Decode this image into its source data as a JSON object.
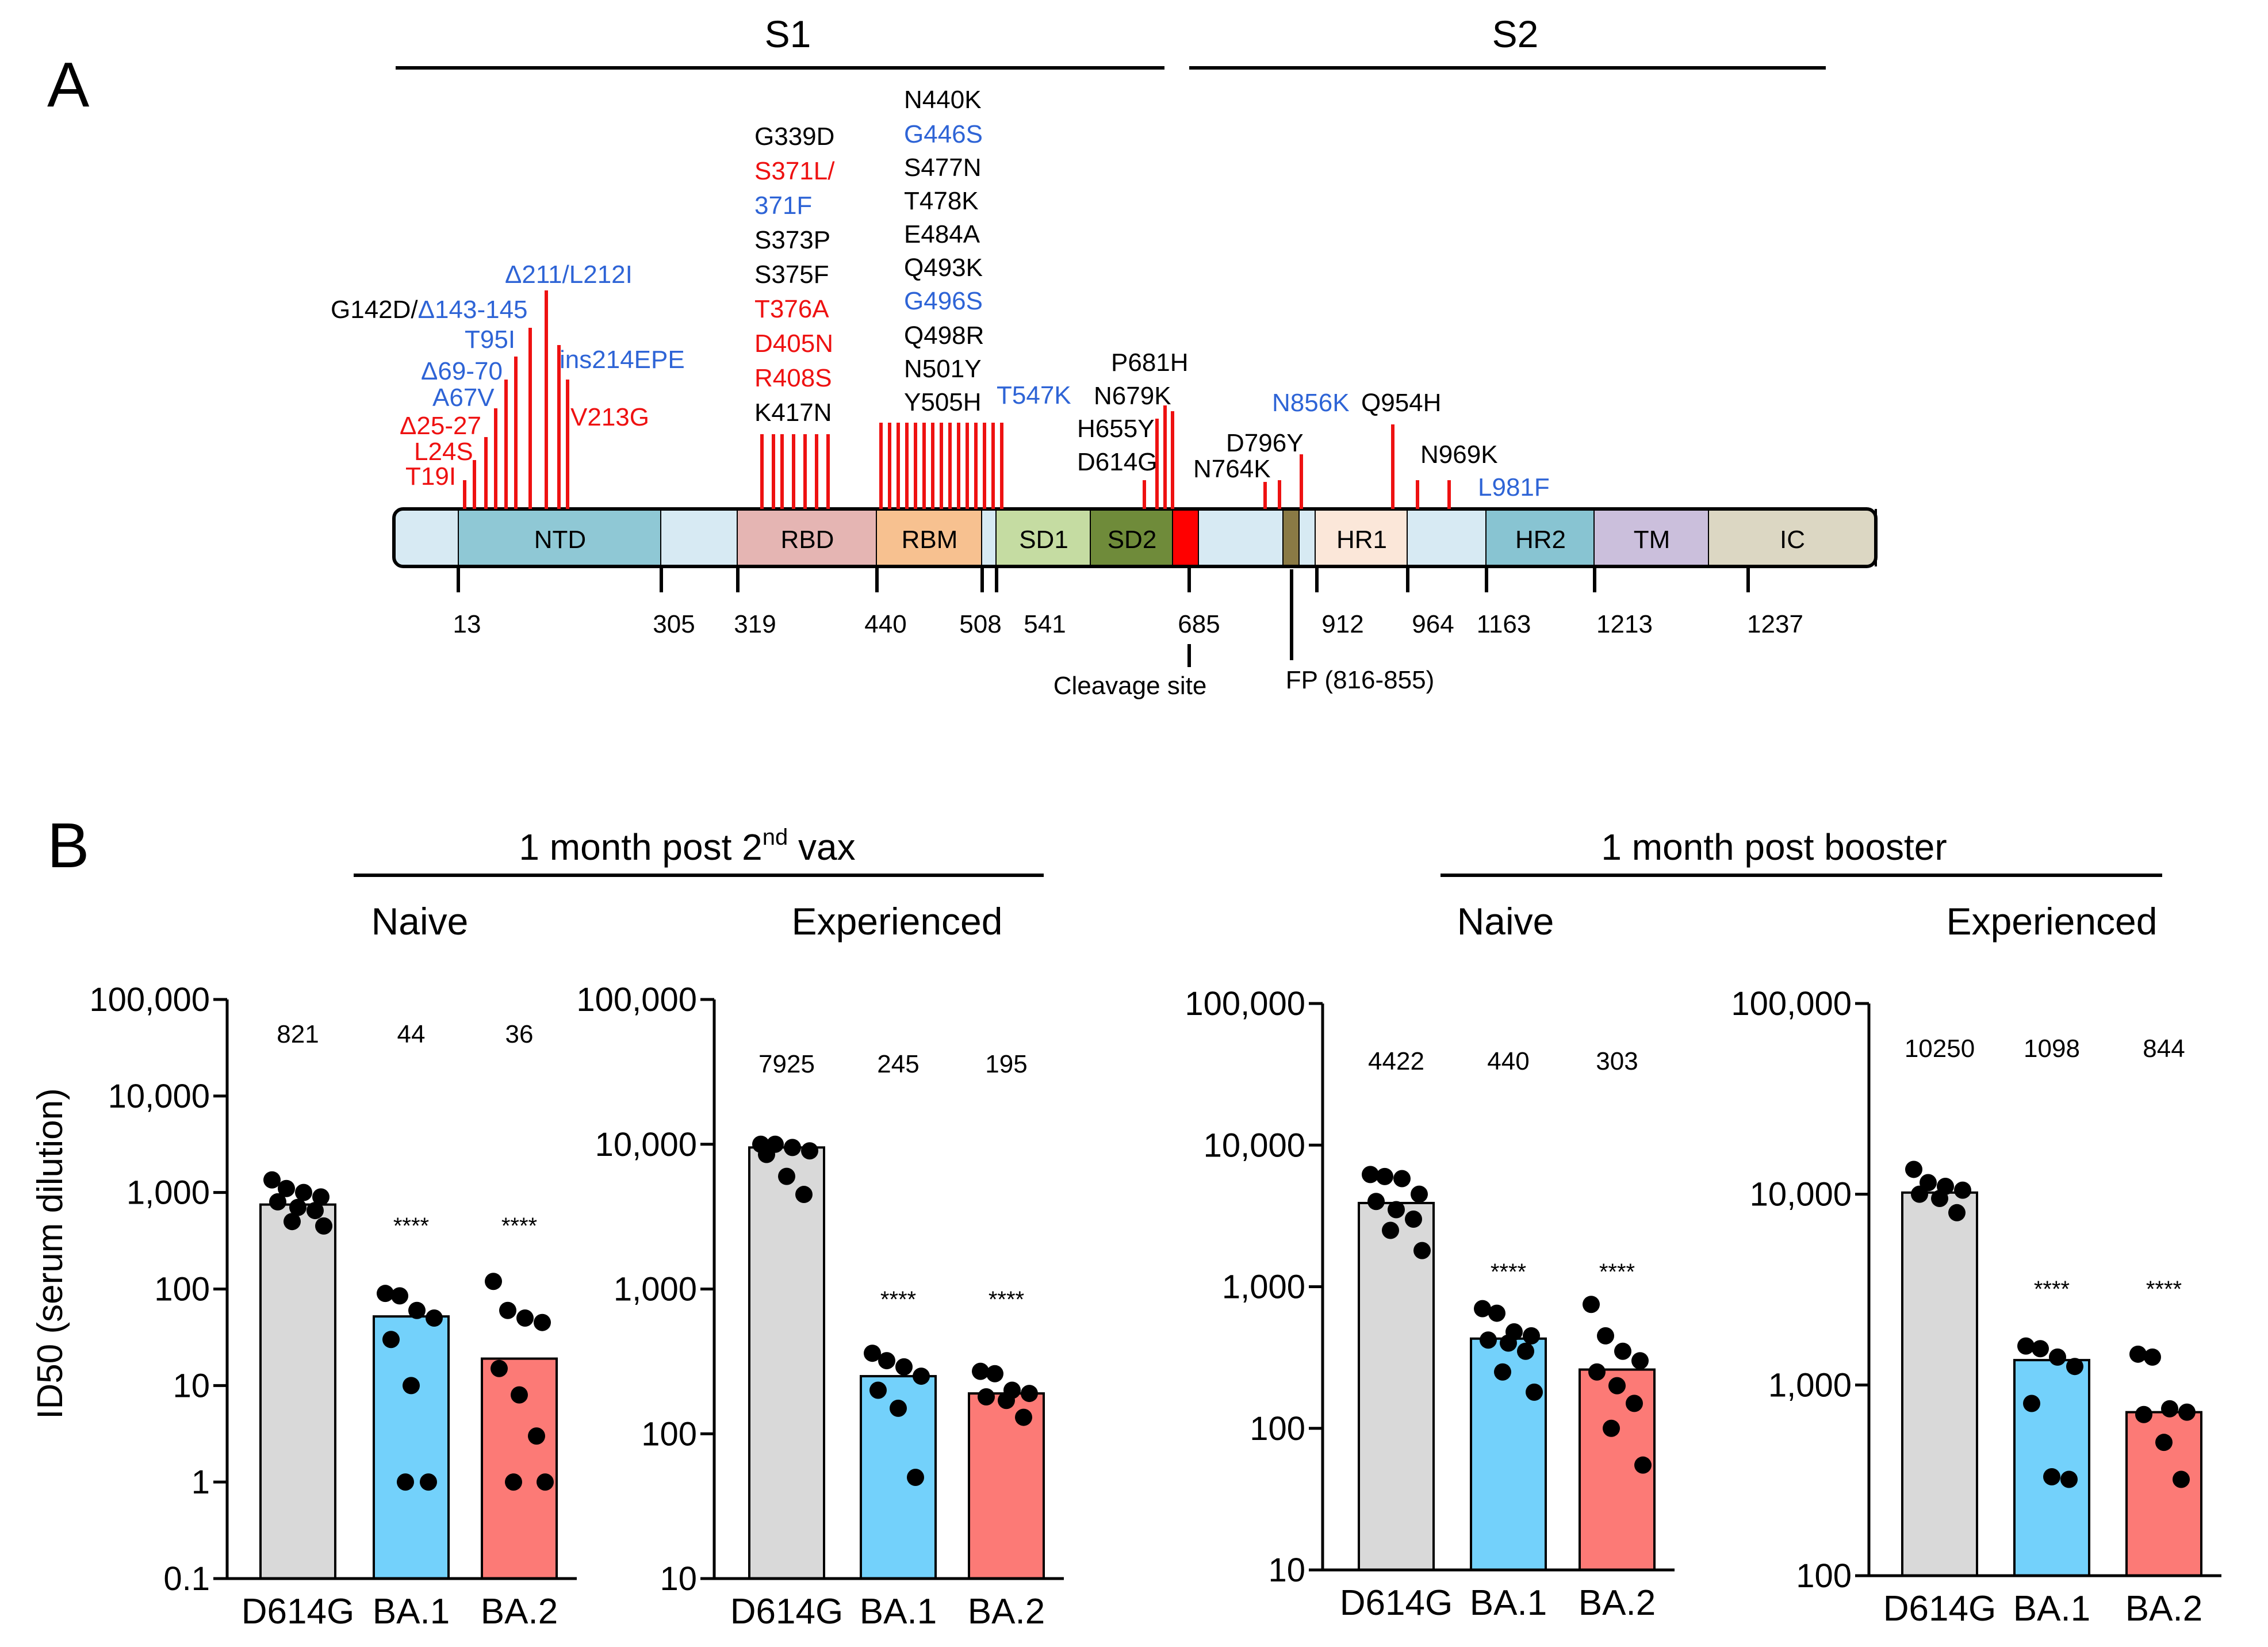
{
  "panel_a": {
    "label": "A",
    "region_s1": "S1",
    "region_s2": "S2",
    "domains": [
      {
        "name": "",
        "color": "#d7eaf3"
      },
      {
        "name": "NTD",
        "color": "#8fc8d5"
      },
      {
        "name": "",
        "color": "#d7eaf3"
      },
      {
        "name": "RBD",
        "color": "#e5b5b3"
      },
      {
        "name": "RBM",
        "color": "#f7c190"
      },
      {
        "name": "",
        "color": "#d7eaf3"
      },
      {
        "name": "SD1",
        "color": "#c5dca2"
      },
      {
        "name": "SD2",
        "color": "#6f8b3a"
      },
      {
        "name": "",
        "color": "#ff0000"
      },
      {
        "name": "",
        "color": "#d7eaf3"
      },
      {
        "name": "",
        "color": "#8a7a45"
      },
      {
        "name": "",
        "color": "#d7eaf3"
      },
      {
        "name": "HR1",
        "color": "#fbe7d9"
      },
      {
        "name": "",
        "color": "#d7eaf3"
      },
      {
        "name": "HR2",
        "color": "#88c4d2"
      },
      {
        "name": "TM",
        "color": "#cbbfdc"
      },
      {
        "name": "IC",
        "color": "#dcd7c3"
      }
    ],
    "positions": [
      "13",
      "305",
      "319",
      "440",
      "508",
      "541",
      "685",
      "912",
      "964",
      "1163",
      "1213",
      "1237"
    ],
    "cleavage_label": "Cleavage site",
    "fp_label": "FP (816-855)",
    "mutations_ntd": [
      {
        "text": "G142D/",
        "color": "#000000"
      },
      {
        "text": "Δ143-145",
        "color": "#2e64d6"
      },
      {
        "text": "Δ211/L212I",
        "color": "#2e64d6"
      },
      {
        "text": "T95I",
        "color": "#2e64d6"
      },
      {
        "text": "ins214EPE",
        "color": "#2e64d6"
      },
      {
        "text": "Δ69-70",
        "color": "#2e64d6"
      },
      {
        "text": "A67V",
        "color": "#2e64d6"
      },
      {
        "text": "V213G",
        "color": "#ee1111"
      },
      {
        "text": "Δ25-27",
        "color": "#ee1111"
      },
      {
        "text": "L24S",
        "color": "#ee1111"
      },
      {
        "text": "T19I",
        "color": "#ee1111"
      }
    ],
    "mutations_rbd": [
      {
        "text": "G339D",
        "color": "#000000"
      },
      {
        "text": "S371L/",
        "color": "#ee1111"
      },
      {
        "text": "371F",
        "color": "#2e64d6"
      },
      {
        "text": "S373P",
        "color": "#000000"
      },
      {
        "text": "S375F",
        "color": "#000000"
      },
      {
        "text": "T376A",
        "color": "#ee1111"
      },
      {
        "text": "D405N",
        "color": "#ee1111"
      },
      {
        "text": "R408S",
        "color": "#ee1111"
      },
      {
        "text": "K417N",
        "color": "#000000"
      }
    ],
    "mutations_rbm": [
      {
        "text": "N440K",
        "color": "#000000"
      },
      {
        "text": "G446S",
        "color": "#2e64d6"
      },
      {
        "text": "S477N",
        "color": "#000000"
      },
      {
        "text": "T478K",
        "color": "#000000"
      },
      {
        "text": "E484A",
        "color": "#000000"
      },
      {
        "text": "Q493K",
        "color": "#000000"
      },
      {
        "text": "G496S",
        "color": "#2e64d6"
      },
      {
        "text": "Q498R",
        "color": "#000000"
      },
      {
        "text": "N501Y",
        "color": "#000000"
      },
      {
        "text": "Y505H",
        "color": "#000000"
      }
    ],
    "mutations_other": [
      {
        "text": "T547K",
        "color": "#2e64d6"
      },
      {
        "text": "P681H",
        "color": "#000000"
      },
      {
        "text": "N679K",
        "color": "#000000"
      },
      {
        "text": "H655Y",
        "color": "#000000"
      },
      {
        "text": "D614G",
        "color": "#000000"
      },
      {
        "text": "N856K",
        "color": "#2e64d6"
      },
      {
        "text": "Q954H",
        "color": "#000000"
      },
      {
        "text": "D796Y",
        "color": "#000000"
      },
      {
        "text": "N764K",
        "color": "#000000"
      },
      {
        "text": "N969K",
        "color": "#000000"
      },
      {
        "text": "L981F",
        "color": "#2e64d6"
      }
    ]
  },
  "panel_b": {
    "label": "B",
    "group1_title": "1 month post 2",
    "group1_sup": "nd",
    "group1_tail": " vax",
    "group2_title": "1 month post booster",
    "sub_naive": "Naive",
    "sub_experienced": "Experienced",
    "y_axis_label": "ID50 (serum dilution)",
    "significance": "****"
  },
  "chart_data": [
    {
      "type": "bar",
      "title": "1 month post 2nd vax - Naive",
      "ylabel": "ID50 (serum dilution)",
      "yscale": "log",
      "ylim": [
        0.1,
        100000
      ],
      "yticks": [
        "0.1",
        "1",
        "10",
        "100",
        "1,000",
        "10,000",
        "100,000"
      ],
      "categories": [
        "D614G",
        "BA.1",
        "BA.2"
      ],
      "values": [
        821,
        44,
        36
      ],
      "value_labels": [
        "821",
        "44",
        "36"
      ],
      "bar_heights": [
        750,
        52,
        19
      ],
      "bar_colors": [
        "#d9d9d9",
        "#73d1fb",
        "#fc7a76"
      ],
      "significance": [
        "",
        "****",
        "****"
      ],
      "points": [
        [
          1350,
          1100,
          1000,
          900,
          800,
          700,
          650,
          500,
          450
        ],
        [
          90,
          85,
          60,
          50,
          30,
          10,
          1,
          1
        ],
        [
          120,
          60,
          50,
          45,
          15,
          8,
          3,
          1,
          1
        ]
      ]
    },
    {
      "type": "bar",
      "title": "1 month post 2nd vax - Experienced",
      "yscale": "log",
      "ylim": [
        10,
        100000
      ],
      "yticks": [
        "10",
        "100",
        "1,000",
        "10,000",
        "100,000"
      ],
      "categories": [
        "D614G",
        "BA.1",
        "BA.2"
      ],
      "values": [
        7925,
        245,
        195
      ],
      "value_labels": [
        "7925",
        "245",
        "195"
      ],
      "bar_heights": [
        9500,
        250,
        190
      ],
      "bar_colors": [
        "#d9d9d9",
        "#73d1fb",
        "#fc7a76"
      ],
      "significance": [
        "",
        "****",
        "****"
      ],
      "points": [
        [
          10000,
          10000,
          9500,
          9000,
          8500,
          6000,
          4500
        ],
        [
          360,
          320,
          290,
          250,
          200,
          150,
          50
        ],
        [
          270,
          260,
          200,
          190,
          180,
          170,
          130
        ]
      ]
    },
    {
      "type": "bar",
      "title": "1 month post booster - Naive",
      "yscale": "log",
      "ylim": [
        10,
        100000
      ],
      "yticks": [
        "10",
        "100",
        "1,000",
        "10,000",
        "100,000"
      ],
      "categories": [
        "D614G",
        "BA.1",
        "BA.2"
      ],
      "values": [
        4422,
        440,
        303
      ],
      "value_labels": [
        "4422",
        "440",
        "303"
      ],
      "bar_heights": [
        3900,
        430,
        260
      ],
      "bar_colors": [
        "#d9d9d9",
        "#73d1fb",
        "#fc7a76"
      ],
      "significance": [
        "",
        "****",
        "****"
      ],
      "points": [
        [
          6200,
          6000,
          5800,
          4500,
          4000,
          3500,
          3000,
          2500,
          1800
        ],
        [
          700,
          650,
          480,
          450,
          420,
          400,
          350,
          250,
          180
        ],
        [
          750,
          450,
          350,
          300,
          250,
          200,
          150,
          100,
          55
        ]
      ]
    },
    {
      "type": "bar",
      "title": "1 month post booster - Experienced",
      "yscale": "log",
      "ylim": [
        100,
        100000
      ],
      "yticks": [
        "100",
        "1,000",
        "10,000",
        "100,000"
      ],
      "categories": [
        "D614G",
        "BA.1",
        "BA.2"
      ],
      "values": [
        10250,
        1098,
        844
      ],
      "value_labels": [
        "10250",
        "1098",
        "844"
      ],
      "bar_heights": [
        10200,
        1350,
        720
      ],
      "bar_colors": [
        "#d9d9d9",
        "#73d1fb",
        "#fc7a76"
      ],
      "significance": [
        "",
        "****",
        "****"
      ],
      "points": [
        [
          13500,
          11500,
          11000,
          10500,
          10000,
          9500,
          8000
        ],
        [
          1600,
          1550,
          1400,
          1250,
          800,
          330,
          320
        ],
        [
          1450,
          1400,
          750,
          720,
          700,
          500,
          320
        ]
      ]
    }
  ]
}
